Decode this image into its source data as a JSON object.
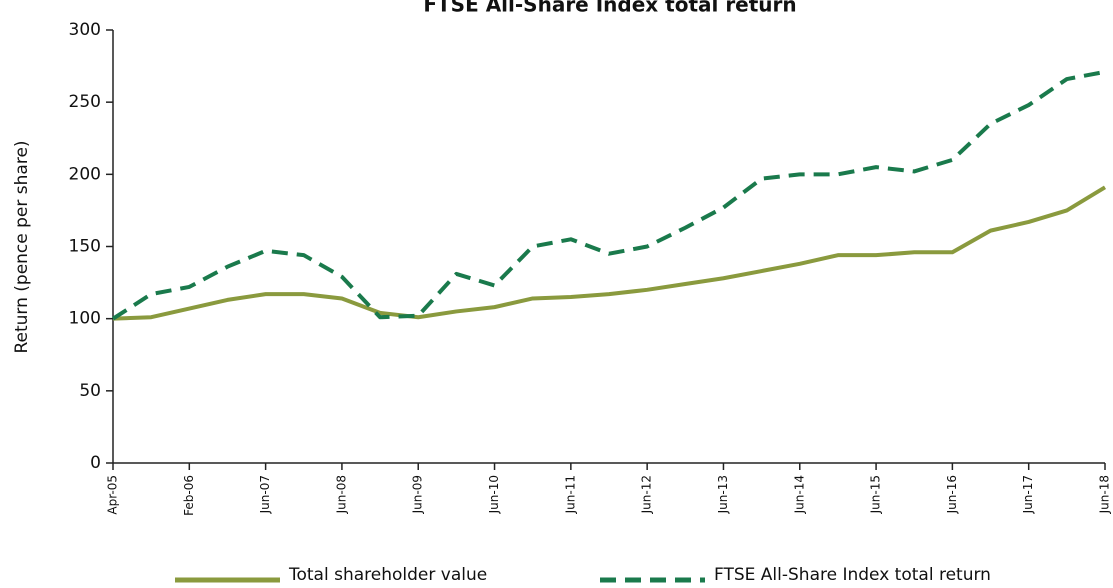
{
  "chart_data": {
    "type": "line",
    "title": "FTSE All-Share Index total return",
    "ylabel": "Return (pence per share)",
    "categories": [
      "Apr-05",
      null,
      "Feb-06",
      null,
      "Jun-07",
      null,
      "Jun-08",
      null,
      "Jun-09",
      null,
      "Jun-10",
      null,
      "Jun-11",
      null,
      "Jun-12",
      null,
      "Jun-13",
      null,
      "Jun-14",
      null,
      "Jun-15",
      null,
      "Jun-16",
      null,
      "Jun-17",
      null,
      "Jun-18"
    ],
    "series": [
      {
        "name": "Total shareholder value",
        "color": "#8a9a3e",
        "dash": false,
        "values": [
          100,
          101,
          107,
          113,
          117,
          117,
          114,
          104,
          101,
          105,
          108,
          114,
          115,
          117,
          120,
          124,
          128,
          133,
          138,
          144,
          144,
          146,
          146,
          161,
          167,
          175,
          191
        ]
      },
      {
        "name": "FTSE All-Share Index total return",
        "color": "#1a7a4c",
        "dash": true,
        "values": [
          100,
          117,
          122,
          136,
          147,
          144,
          129,
          101,
          102,
          131,
          123,
          150,
          155,
          145,
          150,
          163,
          177,
          197,
          200,
          200,
          205,
          202,
          210,
          235,
          248,
          266,
          271
        ]
      }
    ],
    "ylim": [
      0,
      300
    ],
    "yticks": [
      0,
      50,
      100,
      150,
      200,
      250,
      300
    ],
    "grid": false
  }
}
